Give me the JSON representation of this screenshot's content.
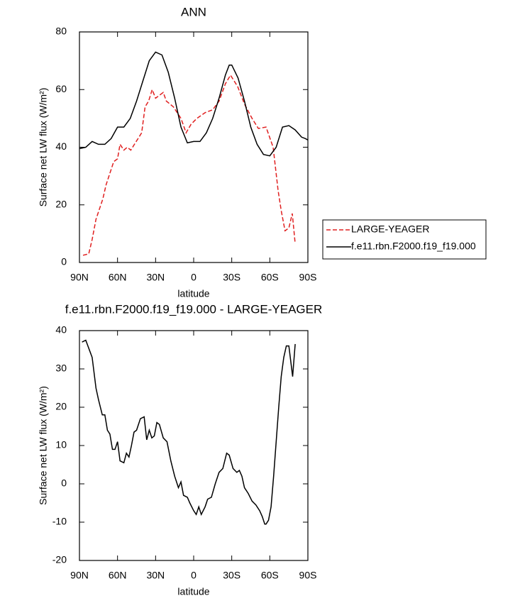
{
  "chart_data": [
    {
      "type": "line",
      "title": "ANN",
      "xlabel": "latitude",
      "ylabel": "Surface net LW flux (W/m²)",
      "xlim": [
        90,
        -90
      ],
      "ylim": [
        0,
        80
      ],
      "xticks": [
        {
          "value": 90,
          "label": "90N"
        },
        {
          "value": 60,
          "label": "60N"
        },
        {
          "value": 30,
          "label": "30N"
        },
        0,
        {
          "value": -30,
          "label": "30S"
        },
        {
          "value": -60,
          "label": "60S"
        },
        {
          "value": -90,
          "label": "90S"
        }
      ],
      "yticks": [
        0,
        20,
        40,
        60,
        80
      ],
      "legend": "right",
      "series": [
        {
          "name": "LARGE-YEAGER",
          "color": "#e02020",
          "dash": "dashed",
          "x": [
            87.2,
            82.7,
            80,
            77,
            71.6,
            69,
            63,
            60,
            58,
            55,
            52.3,
            49.5,
            46.7,
            41,
            38.3,
            35.5,
            32.7,
            30,
            24,
            21.5,
            16,
            10,
            6,
            2,
            -2.5,
            -9,
            -15,
            -20,
            -25,
            -29,
            -34.7,
            -40,
            -46,
            -51,
            -57,
            -62.6,
            -66.5,
            -69,
            -72,
            -75,
            -77.7,
            -80
          ],
          "values": [
            2.5,
            3,
            8,
            15,
            22,
            27,
            35,
            36,
            41,
            39,
            40,
            39,
            41,
            45,
            54,
            56,
            60,
            57,
            59,
            56,
            54,
            50,
            45,
            48,
            50,
            52,
            53,
            56,
            62,
            65,
            61,
            55,
            50,
            46.5,
            47,
            40,
            25,
            18,
            11,
            12,
            17,
            6.5
          ]
        },
        {
          "name": "f.e11.rbn.F2000.f19_f19.000",
          "color": "#000000",
          "dash": "solid",
          "x": [
            90,
            85,
            80,
            75,
            70,
            65,
            60,
            55,
            50,
            45,
            40,
            35,
            30,
            25,
            20,
            15,
            10,
            5,
            0,
            -5,
            -10,
            -15,
            -20,
            -25,
            -28,
            -30,
            -35,
            -40,
            -45,
            -50,
            -55,
            -60,
            -65,
            -70,
            -75,
            -80,
            -85,
            -88,
            -90
          ],
          "values": [
            39.5,
            40,
            42,
            41,
            41,
            43,
            47,
            47,
            50,
            56,
            63,
            70,
            73,
            72,
            66,
            57,
            47,
            41.5,
            42,
            42,
            45,
            50,
            57,
            65,
            68.5,
            68.5,
            64,
            56,
            47,
            41,
            37.5,
            37,
            40,
            47,
            47.5,
            46,
            43.5,
            43,
            42.5
          ]
        }
      ]
    },
    {
      "type": "line",
      "title": "f.e11.rbn.F2000.f19_f19.000 - LARGE-YEAGER",
      "xlabel": "latitude",
      "ylabel": "Surface net LW flux (W/m²)",
      "xlim": [
        90,
        -90
      ],
      "ylim": [
        -20,
        40
      ],
      "xticks": [
        {
          "value": 90,
          "label": "90N"
        },
        {
          "value": 60,
          "label": "60N"
        },
        {
          "value": 30,
          "label": "30N"
        },
        0,
        {
          "value": -30,
          "label": "30S"
        },
        {
          "value": -60,
          "label": "60S"
        },
        {
          "value": -90,
          "label": "90S"
        }
      ],
      "yticks": [
        -20,
        -10,
        0,
        10,
        20,
        30,
        40
      ],
      "series": [
        {
          "color": "#000000",
          "dash": "solid",
          "x": [
            88,
            85,
            80,
            77,
            75,
            72,
            70,
            68,
            66,
            64,
            62,
            60,
            58,
            55,
            53,
            51,
            49,
            47,
            45,
            42,
            39,
            37,
            35,
            33,
            31,
            29,
            27,
            24,
            21,
            18,
            15,
            12,
            10,
            8,
            5,
            3,
            0,
            -2,
            -4,
            -6,
            -9,
            -11,
            -14,
            -17,
            -20,
            -23,
            -26,
            -28,
            -31,
            -34,
            -36,
            -38,
            -40,
            -43,
            -46,
            -49,
            -52,
            -54,
            -56,
            -57,
            -59,
            -61,
            -63,
            -65,
            -67,
            -69,
            -71,
            -73,
            -75,
            -78,
            -80
          ],
          "values": [
            37,
            37.5,
            33,
            25,
            22,
            18,
            18,
            14,
            13,
            9,
            9,
            11,
            6,
            5.5,
            8,
            7,
            10,
            13.5,
            14,
            17,
            17.5,
            11.5,
            14,
            12,
            12.5,
            16,
            15.5,
            12,
            11,
            6,
            2,
            -1,
            0.5,
            -3,
            -3.5,
            -5,
            -7,
            -8,
            -6,
            -8,
            -6,
            -4,
            -3.5,
            0,
            3,
            4,
            8,
            7.5,
            4,
            3,
            3.5,
            2,
            -1,
            -2.5,
            -4.5,
            -5.5,
            -7,
            -8.5,
            -10.5,
            -10.5,
            -9.5,
            -6,
            2,
            11,
            20,
            28,
            33,
            36,
            36,
            28,
            36.5
          ]
        }
      ]
    }
  ]
}
